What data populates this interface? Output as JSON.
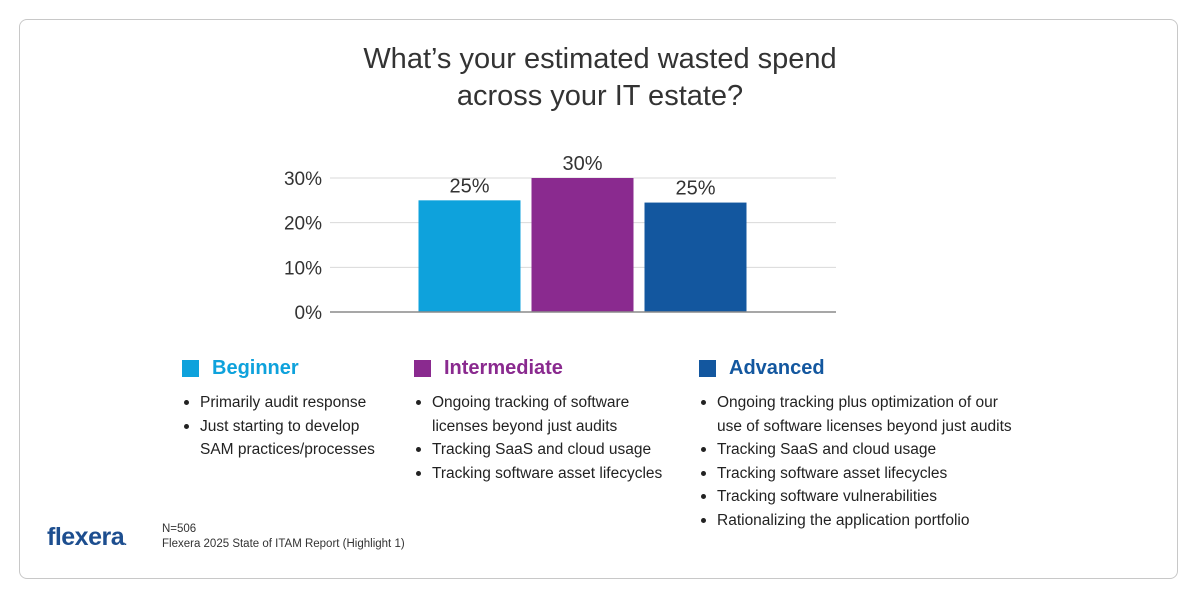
{
  "chart_data": {
    "type": "bar",
    "title": [
      "What’s your estimated wasted spend",
      "across your IT estate?"
    ],
    "categories": [
      "Beginner",
      "Intermediate",
      "Advanced"
    ],
    "values": [
      25,
      30,
      24.5
    ],
    "data_labels": [
      "25%",
      "30%",
      "25%"
    ],
    "colors": [
      "#0ea2dc",
      "#8a2a8f",
      "#13579f"
    ],
    "yticks": [
      0,
      10,
      20,
      30
    ],
    "ytick_labels": [
      "0%",
      "10%",
      "20%",
      "30%"
    ],
    "ylim": [
      0,
      30
    ],
    "grid": true,
    "xlabel": "",
    "ylabel": ""
  },
  "legend": [
    {
      "label": "Beginner",
      "color": "#0ea2dc",
      "bullets": [
        [
          "Primarily audit response"
        ],
        [
          "Just starting to develop",
          "SAM practices/processes"
        ]
      ]
    },
    {
      "label": "Intermediate",
      "color": "#8a2a8f",
      "bullets": [
        [
          "Ongoing tracking of software",
          "licenses beyond just audits"
        ],
        [
          "Tracking SaaS and cloud usage"
        ],
        [
          "Tracking software asset lifecycles"
        ]
      ]
    },
    {
      "label": "Advanced",
      "color": "#13579f",
      "bullets": [
        [
          "Ongoing tracking plus optimization of our",
          "use of software licenses beyond just audits"
        ],
        [
          "Tracking SaaS and cloud usage"
        ],
        [
          "Tracking software asset lifecycles"
        ],
        [
          "Tracking software vulnerabilities"
        ],
        [
          "Rationalizing the application portfolio"
        ]
      ]
    }
  ],
  "footer": {
    "logo": "flexera",
    "logo_mark": ".",
    "sample": "N=506",
    "source": "Flexera 2025 State of ITAM Report (Highlight 1)"
  }
}
